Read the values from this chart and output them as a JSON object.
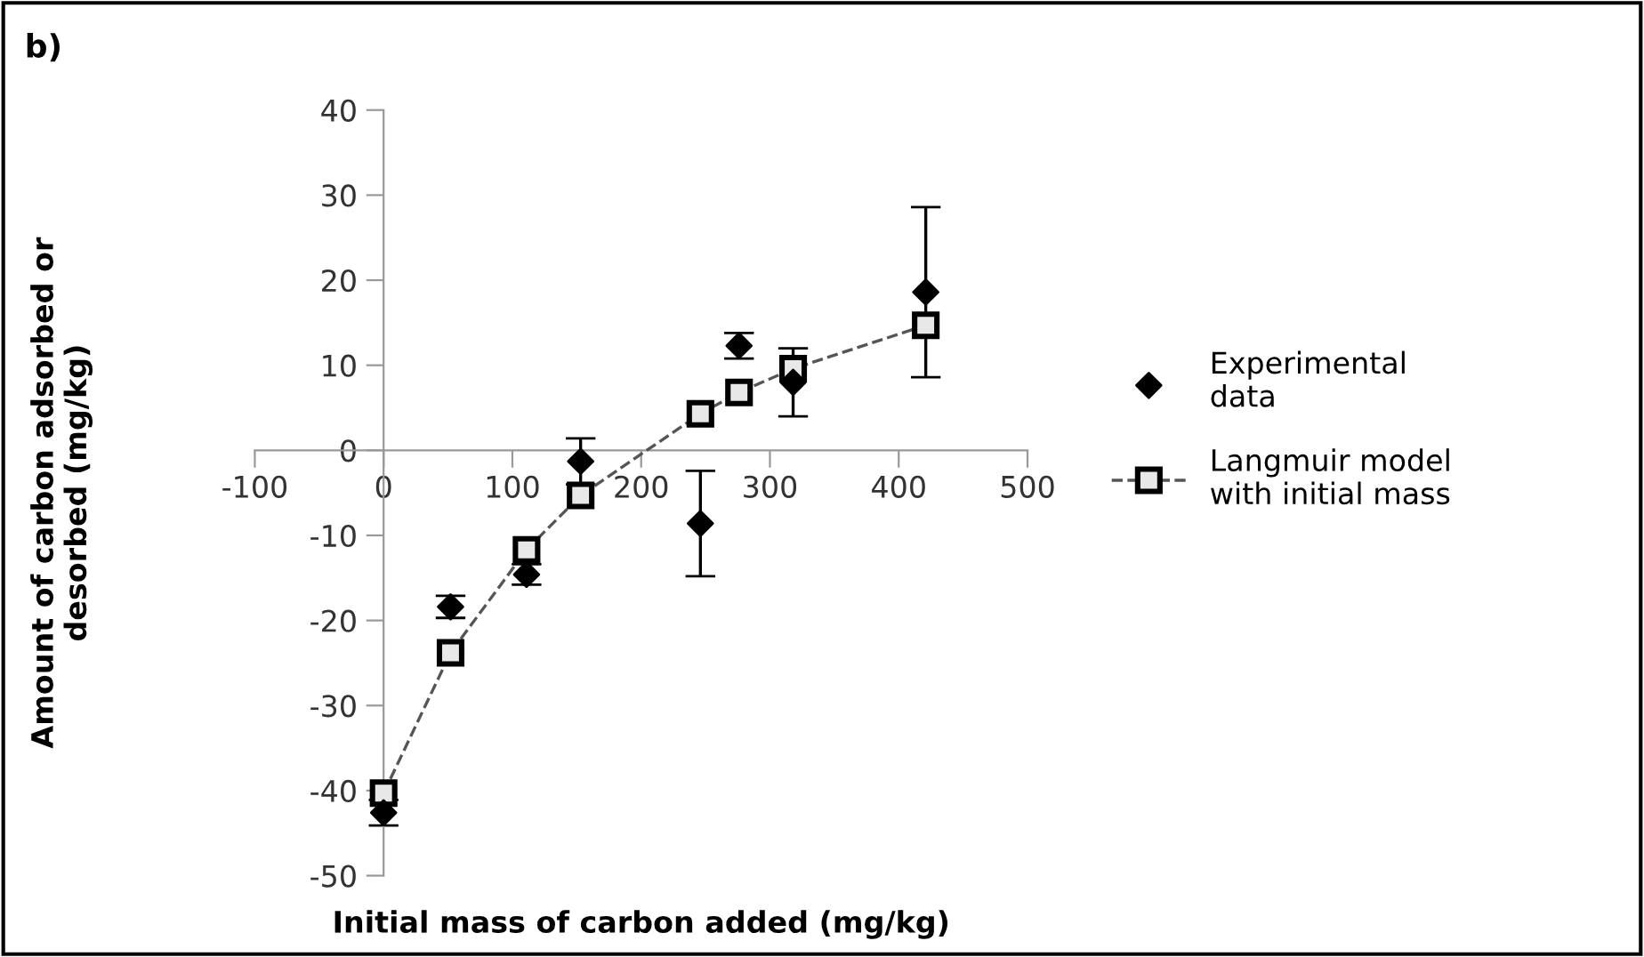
{
  "chart_data": {
    "type": "scatter",
    "title": "b)",
    "xlabel": "Initial mass of carbon added (mg/kg)",
    "ylabel": "Amount of carbon adsorbed or\ndesorbed (mg/kg)",
    "xlim": [
      -100,
      500
    ],
    "xticks": [
      -100,
      0,
      100,
      200,
      300,
      400,
      500
    ],
    "ylim": [
      -50,
      40
    ],
    "yticks": [
      -50,
      -40,
      -30,
      -20,
      -10,
      0,
      10,
      20,
      30,
      40
    ],
    "grid": false,
    "legend": "right",
    "series": [
      {
        "name": "Experimental\ndata",
        "color": "#000000",
        "marker": "diamond",
        "x": [
          0,
          52,
          111,
          153,
          246,
          276,
          318,
          421
        ],
        "values": [
          -42.6,
          -18.4,
          -14.6,
          -1.3,
          -8.6,
          12.3,
          8.0,
          18.6
        ],
        "errors": [
          1.5,
          1.3,
          1.2,
          2.7,
          6.2,
          1.5,
          4,
          10
        ]
      },
      {
        "name": "Langmuir model\nwith initial mass",
        "type": "line",
        "color": "#000000",
        "marker": "square",
        "line_style": "dashed",
        "x": [
          0,
          52,
          111,
          153,
          246,
          276,
          318,
          421
        ],
        "values": [
          -40.3,
          -23.8,
          -11.7,
          -5.3,
          4.3,
          6.8,
          9.6,
          14.7
        ]
      }
    ]
  }
}
